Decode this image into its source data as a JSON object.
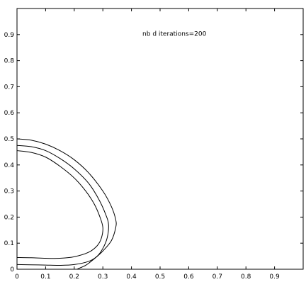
{
  "chart_data": {
    "type": "line",
    "title": "",
    "xlabel": "",
    "ylabel": "",
    "xlim": [
      0,
      1
    ],
    "ylim": [
      0,
      1
    ],
    "grid": false,
    "x_ticks": [
      0,
      0.1,
      0.2,
      0.3,
      0.4,
      0.5,
      0.6,
      0.7,
      0.8,
      0.9
    ],
    "x_tick_labels": [
      "0",
      "0.1",
      "0.2",
      "0.3",
      "0.4",
      "0.5",
      "0.6",
      "0.7",
      "0.8",
      "0.9"
    ],
    "y_ticks": [
      0,
      0.1,
      0.2,
      0.3,
      0.4,
      0.5,
      0.6,
      0.7,
      0.8,
      0.9
    ],
    "y_tick_labels": [
      "0",
      "0.1",
      "0.2",
      "0.3",
      "0.4",
      "0.5",
      "0.6",
      "0.7",
      "0.8",
      "0.9"
    ],
    "annotations": [
      {
        "text": "nb d iterations=200",
        "x": 0.55,
        "y": 0.895
      }
    ],
    "series": [
      {
        "x": [
          0.0,
          0.05,
          0.1,
          0.15,
          0.2,
          0.25,
          0.3,
          0.33,
          0.345,
          0.345,
          0.33,
          0.3,
          0.27,
          0.24,
          0.215,
          0.21
        ],
        "y": [
          0.5,
          0.495,
          0.48,
          0.455,
          0.42,
          0.37,
          0.3,
          0.24,
          0.19,
          0.16,
          0.11,
          0.07,
          0.04,
          0.015,
          0.003,
          0.0
        ]
      },
      {
        "x": [
          0.0,
          0.05,
          0.1,
          0.15,
          0.2,
          0.25,
          0.285,
          0.31,
          0.32,
          0.315,
          0.3,
          0.28,
          0.25,
          0.2,
          0.15,
          0.1,
          0.05,
          0.0
        ],
        "y": [
          0.475,
          0.47,
          0.455,
          0.425,
          0.385,
          0.33,
          0.27,
          0.21,
          0.17,
          0.12,
          0.08,
          0.05,
          0.03,
          0.018,
          0.015,
          0.016,
          0.017,
          0.018
        ]
      },
      {
        "x": [
          0.0,
          0.05,
          0.1,
          0.15,
          0.2,
          0.24,
          0.27,
          0.29,
          0.3,
          0.295,
          0.28,
          0.25,
          0.2,
          0.15,
          0.1,
          0.05,
          0.0
        ],
        "y": [
          0.455,
          0.448,
          0.43,
          0.395,
          0.35,
          0.3,
          0.25,
          0.2,
          0.16,
          0.12,
          0.09,
          0.065,
          0.048,
          0.042,
          0.042,
          0.044,
          0.045
        ]
      }
    ]
  }
}
